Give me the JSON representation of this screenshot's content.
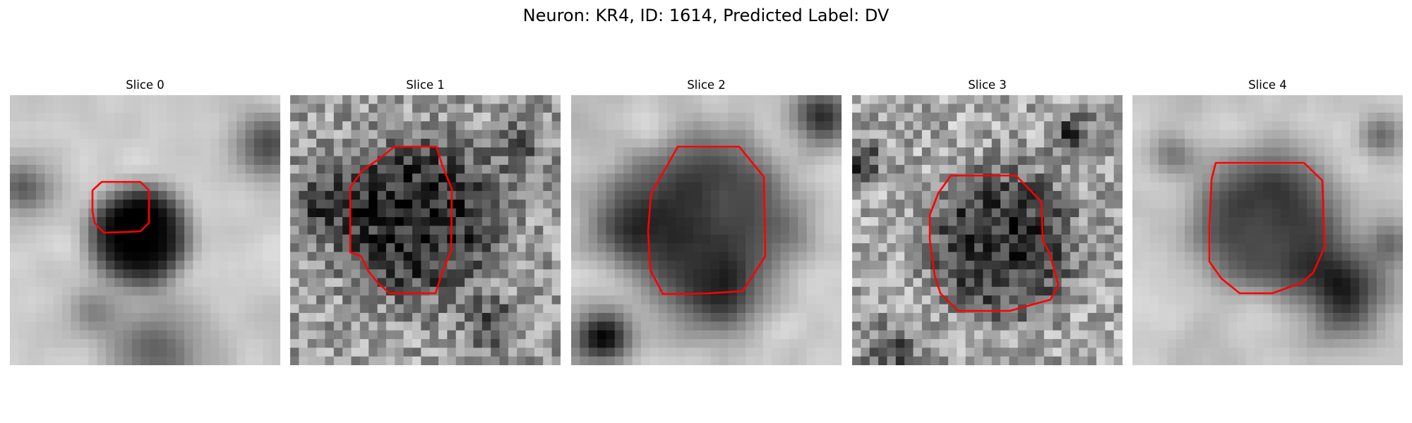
{
  "figure": {
    "title": "Neuron: KR4, ID: 1614, Predicted Label: DV"
  },
  "colors": {
    "contour": "#ff0000",
    "colormap": "grayscale"
  },
  "panels": [
    {
      "title": "Slice 0"
    },
    {
      "title": "Slice 1"
    },
    {
      "title": "Slice 2"
    },
    {
      "title": "Slice 3"
    },
    {
      "title": "Slice 4"
    }
  ]
}
